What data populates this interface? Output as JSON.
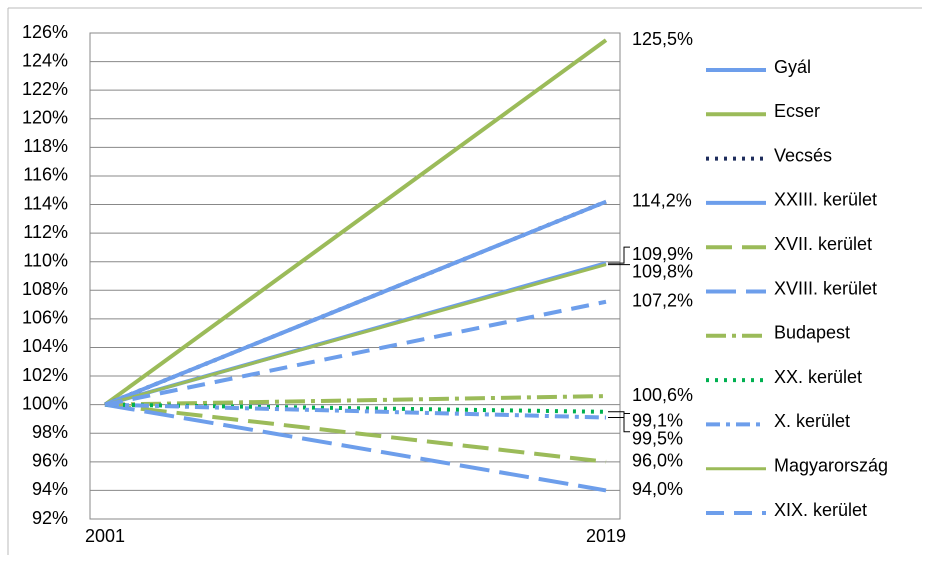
{
  "chart_data": {
    "type": "line",
    "categories": [
      "2001",
      "2019"
    ],
    "ylim": [
      92,
      126
    ],
    "yticks": [
      {
        "value": 92,
        "label": "92%"
      },
      {
        "value": 94,
        "label": "94%"
      },
      {
        "value": 96,
        "label": "96%"
      },
      {
        "value": 98,
        "label": "98%"
      },
      {
        "value": 100,
        "label": "100%"
      },
      {
        "value": 102,
        "label": "102%"
      },
      {
        "value": 104,
        "label": "104%"
      },
      {
        "value": 106,
        "label": "106%"
      },
      {
        "value": 108,
        "label": "108%"
      },
      {
        "value": 110,
        "label": "110%"
      },
      {
        "value": 112,
        "label": "112%"
      },
      {
        "value": 114,
        "label": "114%"
      },
      {
        "value": 116,
        "label": "116%"
      },
      {
        "value": 118,
        "label": "118%"
      },
      {
        "value": 120,
        "label": "120%"
      },
      {
        "value": 122,
        "label": "122%"
      },
      {
        "value": 124,
        "label": "124%"
      },
      {
        "value": 126,
        "label": "126%"
      }
    ],
    "grid": true,
    "legend": "right",
    "series": [
      {
        "name": "Gyál",
        "color": "#6d9eeb",
        "width": 4,
        "dash": "none",
        "values": [
          100,
          109.9
        ],
        "value_labels": [
          null,
          "109,9%"
        ]
      },
      {
        "name": "Ecser",
        "color": "#9bbb59",
        "width": 4,
        "dash": "none",
        "values": [
          100,
          125.5
        ],
        "value_labels": [
          null,
          "125,5%"
        ]
      },
      {
        "name": "Vecsés",
        "color": "#1f2d5c",
        "width": 4,
        "dash": "3 6",
        "values": [
          100,
          114.2
        ],
        "value_labels": [
          null,
          null
        ]
      },
      {
        "name": "XXIII. kerület",
        "color": "#6d9eeb",
        "width": 4,
        "dash": "none",
        "values": [
          100,
          114.2
        ],
        "value_labels": [
          null,
          "114,2%"
        ]
      },
      {
        "name": "XVII. kerület",
        "color": "#9bbb59",
        "width": 4,
        "dash": "26 10",
        "values": [
          100,
          96.0
        ],
        "value_labels": [
          null,
          "96,0%"
        ]
      },
      {
        "name": "XVIII. kerület",
        "color": "#6d9eeb",
        "width": 4,
        "dash": "30 10",
        "values": [
          100,
          94.0
        ],
        "value_labels": [
          null,
          "94,0%"
        ]
      },
      {
        "name": "Budapest",
        "color": "#9bbb59",
        "width": 4,
        "dash": "20 6 4 6",
        "values": [
          100,
          100.6
        ],
        "value_labels": [
          null,
          "100,6%"
        ]
      },
      {
        "name": "XX. kerület",
        "color": "#00b050",
        "width": 4,
        "dash": "3 6",
        "values": [
          100,
          99.5
        ],
        "value_labels": [
          null,
          "99,5%"
        ]
      },
      {
        "name": "X. kerület",
        "color": "#6d9eeb",
        "width": 4,
        "dash": "14 6 4 6",
        "values": [
          100,
          99.1
        ],
        "value_labels": [
          null,
          "99,1%"
        ]
      },
      {
        "name": "Magyarország",
        "color": "#9bbb59",
        "width": 3,
        "dash": "none",
        "values": [
          100,
          109.8
        ],
        "value_labels": [
          null,
          "109,8%"
        ]
      },
      {
        "name": "XIX. kerület",
        "color": "#6d9eeb",
        "width": 4,
        "dash": "18 10",
        "values": [
          100,
          107.2
        ],
        "value_labels": [
          null,
          "107,2%"
        ]
      }
    ]
  }
}
